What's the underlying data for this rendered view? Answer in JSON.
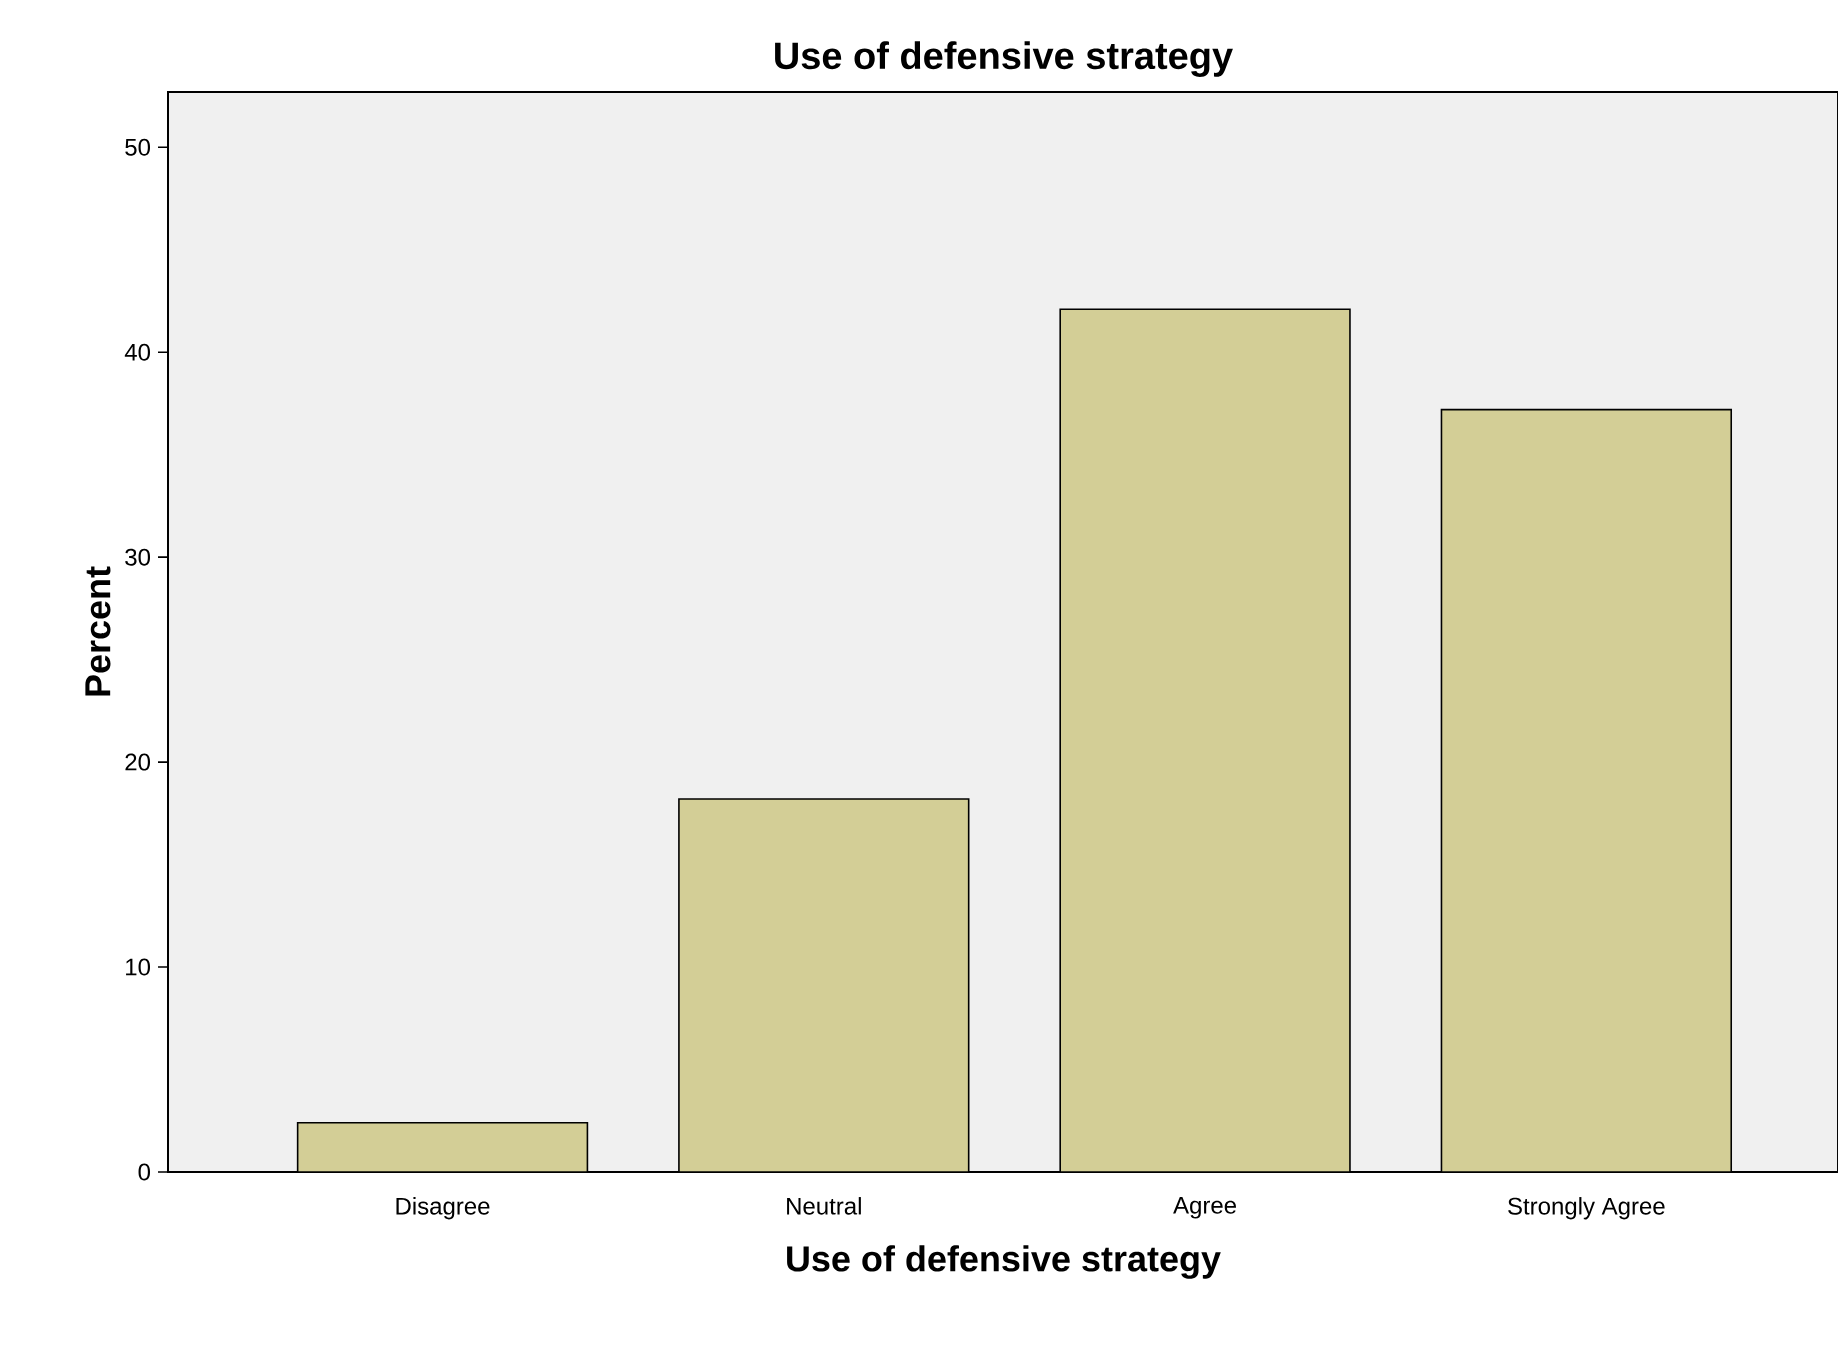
{
  "chart_data": {
    "type": "bar",
    "title": "Use of defensive strategy",
    "xlabel": "Use of defensive strategy",
    "ylabel": "Percent",
    "categories": [
      "Disagree",
      "Neutral",
      "Agree",
      "Strongly Agree"
    ],
    "values": [
      2.4,
      18.2,
      42.1,
      37.2
    ],
    "color": "#d3ce96",
    "ylim": [
      0,
      52.7
    ],
    "yticks": [
      0,
      10,
      20,
      30,
      40,
      50
    ]
  }
}
